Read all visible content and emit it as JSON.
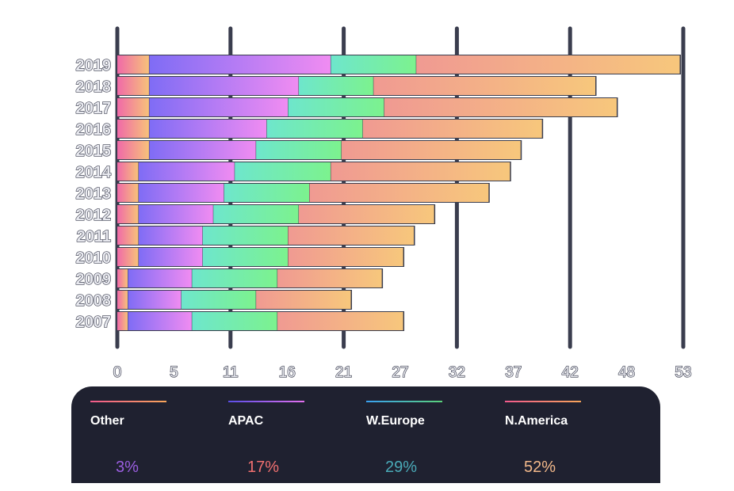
{
  "chart_data": {
    "type": "bar",
    "orientation": "horizontal",
    "stacked": true,
    "categories": [
      "2019",
      "2018",
      "2017",
      "2016",
      "2015",
      "2014",
      "2013",
      "2012",
      "2011",
      "2010",
      "2009",
      "2008",
      "2007"
    ],
    "series": [
      {
        "name": "Other",
        "values": [
          3,
          3,
          3,
          3,
          3,
          2,
          2,
          2,
          2,
          2,
          1,
          1,
          1
        ],
        "gradient": [
          "#f06aa8",
          "#f7c27a"
        ]
      },
      {
        "name": "APAC",
        "values": [
          17,
          14,
          13,
          11,
          10,
          9,
          8,
          7,
          6,
          6,
          6,
          5,
          6
        ],
        "gradient": [
          "#7f6cf5",
          "#f08cf2"
        ]
      },
      {
        "name": "W.Europe",
        "values": [
          8,
          7,
          9,
          9,
          8,
          9,
          8,
          8,
          8,
          8,
          8,
          7,
          8
        ],
        "gradient": [
          "#6ee6cc",
          "#7cf28e"
        ]
      },
      {
        "name": "N.America",
        "values": [
          24.7,
          20.8,
          21.8,
          16.8,
          16.8,
          16.8,
          16.8,
          12.7,
          11.8,
          10.8,
          9.8,
          8.9,
          11.8
        ],
        "gradient": [
          "#f09a92",
          "#f7c77c"
        ]
      }
    ],
    "xticks": [
      "0",
      "5",
      "11",
      "16",
      "21",
      "27",
      "32",
      "37",
      "42",
      "48",
      "53"
    ],
    "xlim": [
      0,
      53
    ],
    "grid": true,
    "legend_position": "bottom"
  },
  "legend": [
    {
      "name": "Other",
      "pct": "3%",
      "line": [
        "#f05a8c",
        "#f7a55a"
      ],
      "pct_color": "#9a5ee0"
    },
    {
      "name": "APAC",
      "pct": "17%",
      "line": [
        "#5a4ee6",
        "#e270ee"
      ],
      "pct_color": "#f07070"
    },
    {
      "name": "W.Europe",
      "pct": "29%",
      "line": [
        "#3aa0f0",
        "#5ad07a"
      ],
      "pct_color": "#4aaab8"
    },
    {
      "name": "N.America",
      "pct": "52%",
      "line": [
        "#f05a8c",
        "#f7a55a"
      ],
      "pct_color": "#f2b88a"
    }
  ]
}
